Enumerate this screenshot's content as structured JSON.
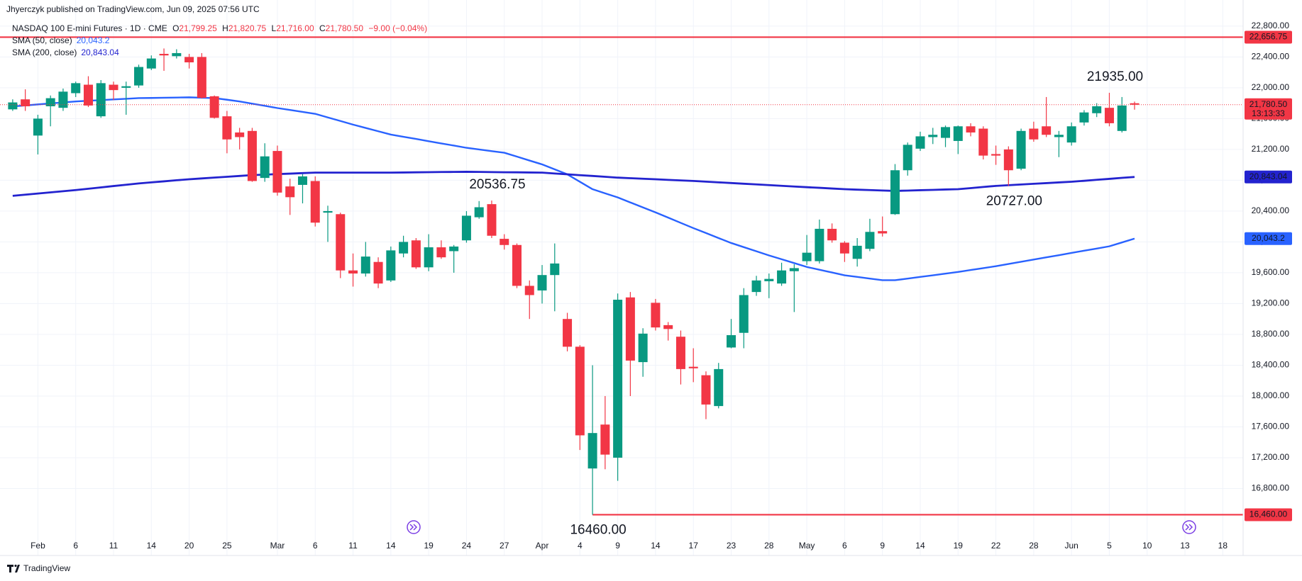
{
  "header": {
    "byline": "Jhyerczyk published on TradingView.com, Jun 09, 2025 07:56 UTC"
  },
  "footer": {
    "brand": "TradingView"
  },
  "chart_data": {
    "type": "candlestick",
    "title": "NASDAQ 100 E-mini Futures · 1D · CME",
    "ohlc_legend": [
      {
        "prefix": "O",
        "value": "21,799.25"
      },
      {
        "prefix": "H",
        "value": "21,820.75"
      },
      {
        "prefix": "L",
        "value": "21,716.00"
      },
      {
        "prefix": "C",
        "value": "21,780.50"
      }
    ],
    "change": "−9.00 (−0.04%)",
    "up_color": "#089981",
    "down_color": "#f23645",
    "categories": [
      null,
      null,
      "Feb",
      null,
      null,
      "6",
      null,
      null,
      "11",
      null,
      null,
      "14",
      null,
      null,
      "20",
      null,
      null,
      "25",
      null,
      null,
      null,
      "Mar",
      null,
      null,
      "6",
      null,
      null,
      "11",
      null,
      null,
      "14",
      null,
      null,
      "19",
      null,
      null,
      "24",
      null,
      null,
      "27",
      null,
      null,
      "Apr",
      null,
      null,
      "4",
      null,
      null,
      "9",
      null,
      null,
      "14",
      null,
      null,
      "17",
      null,
      null,
      "23",
      null,
      null,
      "28",
      null,
      null,
      "May",
      null,
      null,
      "6",
      null,
      null,
      "9",
      null,
      null,
      "14",
      null,
      null,
      "19",
      null,
      null,
      "22",
      null,
      null,
      "28",
      null,
      null,
      "Jun",
      null,
      null,
      "5",
      null,
      null,
      "10",
      null,
      null,
      "13",
      null,
      null,
      "18",
      null
    ],
    "open": [
      21720,
      21850,
      21380,
      21760,
      21740,
      21930,
      22040,
      21630,
      22040,
      22000,
      22030,
      22250,
      22440,
      22410,
      22400,
      22400,
      21890,
      21630,
      21420,
      21440,
      20830,
      21180,
      20720,
      20740,
      20790,
      20380,
      20360,
      19630,
      19590,
      19740,
      19500,
      19850,
      20020,
      19670,
      19930,
      19880,
      20020,
      20320,
      20490,
      20040,
      19960,
      19430,
      19370,
      19570,
      19000,
      18640,
      17060,
      17630,
      17200,
      19280,
      18440,
      19210,
      18920,
      18770,
      18380,
      18270,
      17870,
      18630,
      18820,
      19350,
      19490,
      19460,
      19620,
      19750,
      19750,
      20170,
      19990,
      19780,
      19910,
      20140,
      20360,
      20930,
      21210,
      21360,
      21350,
      21310,
      21500,
      21470,
      21140,
      21200,
      20950,
      21470,
      21500,
      21360,
      21290,
      21550,
      21670,
      21740,
      21440,
      21799.25,
      null,
      null,
      null,
      null,
      null,
      null,
      null,
      null
    ],
    "high": [
      21850,
      21980,
      21650,
      21900,
      21990,
      22080,
      22150,
      22100,
      22080,
      22080,
      22300,
      22420,
      22510,
      22500,
      22440,
      22450,
      21900,
      21700,
      21480,
      21480,
      21280,
      21250,
      20820,
      20880,
      20850,
      20470,
      20380,
      19850,
      20000,
      19800,
      19940,
      20080,
      20050,
      20100,
      20020,
      19960,
      20400,
      20530,
      20536.75,
      20100,
      19980,
      19500,
      19700,
      19980,
      19080,
      18660,
      18400,
      18000,
      19330,
      19350,
      18880,
      19260,
      18960,
      18850,
      18620,
      18320,
      18430,
      19000,
      19400,
      19560,
      19590,
      19730,
      19710,
      20090,
      20290,
      20240,
      20010,
      20050,
      20300,
      20330,
      21010,
      21290,
      21430,
      21480,
      21510,
      21510,
      21540,
      21500,
      21250,
      21240,
      21470,
      21560,
      21880,
      21440,
      21550,
      21710,
      21800,
      21935,
      21880,
      21820.75,
      null,
      null,
      null,
      null,
      null,
      null,
      null,
      null
    ],
    "low": [
      21700,
      21700,
      21135,
      21500,
      21700,
      21880,
      21750,
      21610,
      21840,
      21650,
      22000,
      22230,
      22220,
      22380,
      22250,
      21860,
      21600,
      21150,
      21200,
      20780,
      20780,
      20600,
      20350,
      20500,
      20200,
      20000,
      19530,
      19420,
      19550,
      19400,
      19480,
      19800,
      19650,
      19620,
      19780,
      19600,
      19990,
      20300,
      20050,
      19900,
      19400,
      19000,
      19200,
      19100,
      18580,
      17300,
      16460,
      17050,
      16900,
      18000,
      18250,
      18850,
      18720,
      18150,
      18180,
      17700,
      17840,
      18620,
      18620,
      19300,
      19270,
      19430,
      19090,
      19700,
      19720,
      19990,
      19740,
      19680,
      19880,
      20070,
      20350,
      20860,
      21180,
      21270,
      21230,
      21140,
      21370,
      21070,
      21000,
      20727,
      20930,
      21300,
      21360,
      21100,
      21250,
      21510,
      21620,
      21500,
      21420,
      21716,
      null,
      null,
      null,
      null,
      null,
      null,
      null,
      null
    ],
    "close": [
      21810,
      21760,
      21600,
      21865,
      21950,
      22060,
      21770,
      22060,
      21970,
      22020,
      22270,
      22380,
      22420,
      22450,
      22330,
      21870,
      21610,
      21330,
      21360,
      20790,
      21110,
      20640,
      20580,
      20850,
      20250,
      20400,
      19630,
      19590,
      19810,
      19460,
      19890,
      20000,
      19670,
      19930,
      19800,
      19940,
      20340,
      20450,
      20080,
      19960,
      19430,
      19310,
      19570,
      19720,
      18640,
      17490,
      17520,
      17240,
      19250,
      18460,
      18810,
      18890,
      18870,
      18350,
      18360,
      17890,
      18350,
      18790,
      19310,
      19500,
      19520,
      19630,
      19660,
      19860,
      20170,
      20020,
      19850,
      19950,
      20130,
      20110,
      20930,
      21260,
      21370,
      21390,
      21490,
      21500,
      21420,
      21120,
      21120,
      20930,
      21440,
      21330,
      21390,
      21390,
      21500,
      21680,
      21760,
      21540,
      21770,
      21780.5,
      null,
      null,
      null,
      null,
      null,
      null,
      null,
      null
    ],
    "last_price": {
      "value_label": "21,780.50",
      "countdown": "13:13:33",
      "color": "#f23645"
    },
    "series": [
      {
        "name": "SMA (50, close)",
        "color": "#2962ff",
        "value_label": "20,043.2",
        "values": [
          21758,
          21771,
          21784,
          21797,
          21810,
          21823,
          21832,
          21840,
          21849,
          21857,
          21866,
          21868,
          21871,
          21873,
          21876,
          21871,
          21866,
          21845,
          21823,
          21794,
          21766,
          21737,
          21712,
          21687,
          21662,
          21615,
          21569,
          21522,
          21479,
          21436,
          21393,
          21364,
          21336,
          21307,
          21278,
          21250,
          21221,
          21200,
          21178,
          21157,
          21107,
          21056,
          21006,
          20942,
          20877,
          20780,
          20684,
          20630,
          20577,
          20512,
          20448,
          20383,
          20315,
          20247,
          20179,
          20115,
          20050,
          19986,
          19932,
          19879,
          19825,
          19775,
          19725,
          19675,
          19639,
          19603,
          19567,
          19546,
          19524,
          19503,
          19503,
          19524,
          19546,
          19567,
          19589,
          19610,
          19635,
          19660,
          19685,
          19714,
          19742,
          19771,
          19800,
          19828,
          19857,
          19886,
          19914,
          19943,
          19993,
          20043.2,
          null,
          null,
          null,
          null,
          null,
          null,
          null,
          null
        ]
      },
      {
        "name": "SMA (200, close)",
        "color": "#2323cf",
        "value_label": "20,843.04",
        "values": [
          20598,
          20613,
          20628,
          20643,
          20658,
          20673,
          20690,
          20707,
          20725,
          20742,
          20759,
          20773,
          20786,
          20800,
          20813,
          20824,
          20835,
          20845,
          20856,
          20867,
          20873,
          20880,
          20886,
          20893,
          20899,
          20899,
          20899,
          20899,
          20899,
          20899,
          20899,
          20901,
          20903,
          20905,
          20907,
          20908,
          20910,
          20908,
          20906,
          20904,
          20903,
          20901,
          20899,
          20888,
          20877,
          20866,
          20856,
          20845,
          20834,
          20827,
          20820,
          20813,
          20805,
          20798,
          20791,
          20782,
          20773,
          20764,
          20755,
          20746,
          20737,
          20728,
          20719,
          20710,
          20702,
          20693,
          20684,
          20678,
          20673,
          20667,
          20662,
          20666,
          20671,
          20675,
          20680,
          20684,
          20698,
          20713,
          20727,
          20736,
          20745,
          20754,
          20763,
          20772,
          20781,
          20793,
          20806,
          20818,
          20831,
          20843.04,
          null,
          null,
          null,
          null,
          null,
          null,
          null,
          null
        ]
      }
    ],
    "levels": [
      {
        "value": 22656.75,
        "label": "22,656.75",
        "color": "#f23645"
      },
      {
        "value": 16460,
        "label": "16,460.00",
        "color": "#f23645"
      }
    ],
    "annotations": [
      {
        "label": "21935.00"
      },
      {
        "label": "20536.75"
      },
      {
        "label": "20727.00"
      },
      {
        "label": "16460.00"
      }
    ],
    "ylim": [
      16170,
      22900
    ],
    "yticks": [
      {
        "value": 16800,
        "label": "16,800.00"
      },
      {
        "value": 17200,
        "label": "17,200.00"
      },
      {
        "value": 17600,
        "label": "17,600.00"
      },
      {
        "value": 18000,
        "label": "18,000.00"
      },
      {
        "value": 18400,
        "label": "18,400.00"
      },
      {
        "value": 18800,
        "label": "18,800.00"
      },
      {
        "value": 19200,
        "label": "19,200.00"
      },
      {
        "value": 19600,
        "label": "19,600.00"
      },
      {
        "value": 20000,
        "label": "20,000.00"
      },
      {
        "value": 20400,
        "label": "20,400.00"
      },
      {
        "value": 20800,
        "label": "20,800.00"
      },
      {
        "value": 21200,
        "label": "21,200.00"
      },
      {
        "value": 21600,
        "label": "21,600.00"
      },
      {
        "value": 22000,
        "label": "22,000.00"
      },
      {
        "value": 22400,
        "label": "22,400.00"
      },
      {
        "value": 22800,
        "label": "22,800.00"
      }
    ],
    "grid": true
  }
}
